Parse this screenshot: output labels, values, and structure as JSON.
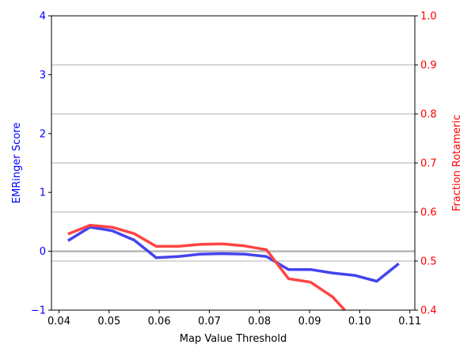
{
  "chart_data": {
    "type": "line",
    "xlabel": "Map Value Threshold",
    "ylabel_left": "EMRinger Score",
    "ylabel_right": "Fraction Rotameric",
    "xlim": [
      0.0385,
      0.111
    ],
    "ylim_left": [
      -1,
      4
    ],
    "ylim_right": [
      0.4,
      1.0
    ],
    "x_ticks": [
      "0.04",
      "0.05",
      "0.06",
      "0.07",
      "0.08",
      "0.09",
      "0.10",
      "0.11"
    ],
    "y_left_ticks": [
      "−1",
      "0",
      "1",
      "2",
      "3",
      "4"
    ],
    "y_right_ticks": [
      "0.4",
      "0.5",
      "0.6",
      "0.7",
      "0.8",
      "0.9",
      "1.0"
    ],
    "grid": "horizontal, right axis",
    "zero_line": 0,
    "colors": {
      "emringer": "#4444ee",
      "rotameric": "#ff4444",
      "left_axis": "#0000ff",
      "right_axis": "#ff0000",
      "grid": "#b0b0b0"
    },
    "series": [
      {
        "axis": "left",
        "x": [
          0.0418,
          0.0462,
          0.0506,
          0.055,
          0.0594,
          0.0638,
          0.0682,
          0.0726,
          0.077,
          0.0814,
          0.0858,
          0.0902,
          0.0946,
          0.099,
          0.1034,
          0.1078
        ],
        "y": [
          0.18,
          0.41,
          0.35,
          0.19,
          -0.11,
          -0.09,
          -0.05,
          -0.04,
          -0.05,
          -0.09,
          -0.31,
          -0.31,
          -0.37,
          -0.41,
          -0.51,
          -0.21
        ]
      },
      {
        "axis": "right",
        "x": [
          0.0418,
          0.0462,
          0.0506,
          0.055,
          0.0594,
          0.0638,
          0.0682,
          0.0726,
          0.077,
          0.0814,
          0.0858,
          0.0902,
          0.0946,
          0.097
        ],
        "y": [
          0.555,
          0.573,
          0.569,
          0.556,
          0.53,
          0.53,
          0.534,
          0.535,
          0.531,
          0.523,
          0.464,
          0.457,
          0.427,
          0.4
        ]
      }
    ]
  }
}
